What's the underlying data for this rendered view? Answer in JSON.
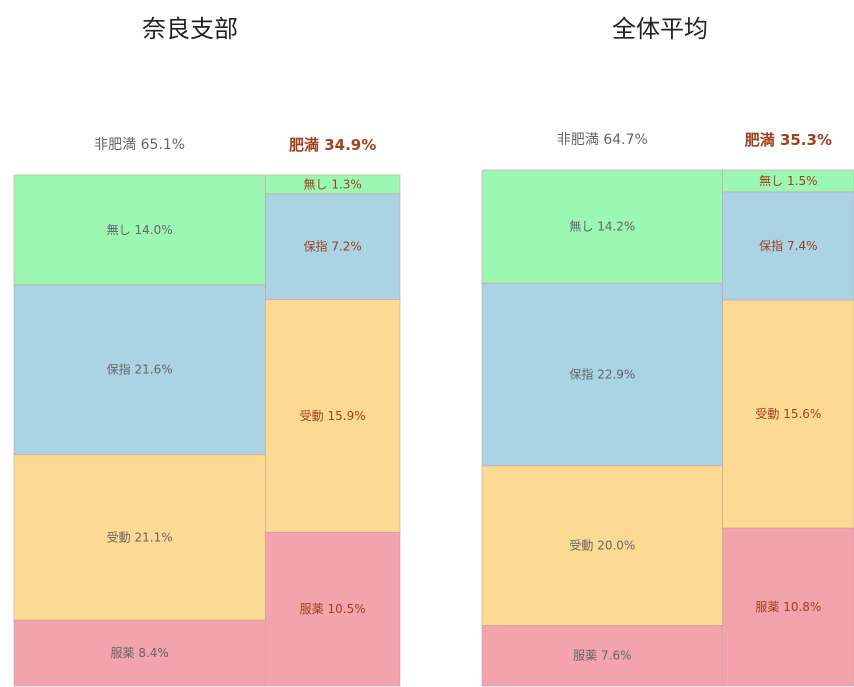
{
  "chart_data": [
    {
      "type": "mosaic",
      "title": "奈良支部",
      "categories": [
        "非肥満",
        "肥満"
      ],
      "category_values": [
        65.1,
        34.9
      ],
      "category_value_labels": [
        "65.1%",
        "34.9%"
      ],
      "series": [
        {
          "name": "無し",
          "color": "#9cf7b3",
          "values": [
            14.0,
            1.3
          ],
          "value_labels": [
            "14.0%",
            "1.3%"
          ]
        },
        {
          "name": "保指",
          "color": "#aad3e4",
          "values": [
            21.6,
            7.2
          ],
          "value_labels": [
            "21.6%",
            "7.2%"
          ]
        },
        {
          "name": "受動",
          "color": "#fdda94",
          "values": [
            21.1,
            15.9
          ],
          "value_labels": [
            "21.1%",
            "15.9%"
          ]
        },
        {
          "name": "服薬",
          "color": "#f2a3ab",
          "values": [
            8.4,
            10.5
          ],
          "value_labels": [
            "8.4%",
            "10.5%"
          ]
        }
      ]
    },
    {
      "type": "mosaic",
      "title": "全体平均",
      "categories": [
        "非肥満",
        "肥満"
      ],
      "category_values": [
        64.7,
        35.3
      ],
      "category_value_labels": [
        "64.7%",
        "35.3%"
      ],
      "series": [
        {
          "name": "無し",
          "color": "#9cf7b3",
          "values": [
            14.2,
            1.5
          ],
          "value_labels": [
            "14.2%",
            "1.5%"
          ]
        },
        {
          "name": "保指",
          "color": "#aad3e4",
          "values": [
            22.9,
            7.4
          ],
          "value_labels": [
            "22.9%",
            "7.4%"
          ]
        },
        {
          "name": "受動",
          "color": "#fdda94",
          "values": [
            20.0,
            15.6
          ],
          "value_labels": [
            "20.0%",
            "15.6%"
          ]
        },
        {
          "name": "服薬",
          "color": "#f2a3ab",
          "values": [
            7.6,
            10.8
          ],
          "value_labels": [
            "7.6%",
            "10.8%"
          ]
        }
      ]
    }
  ]
}
